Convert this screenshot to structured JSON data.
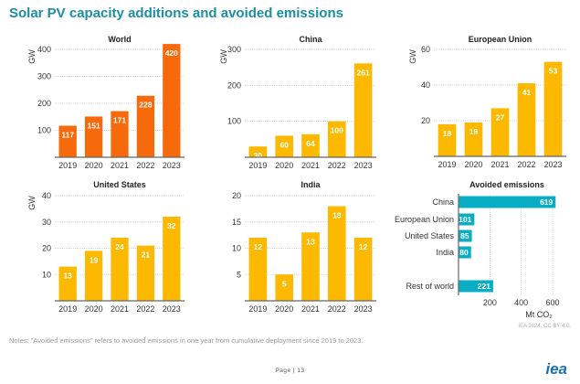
{
  "title": "Solar PV capacity additions and avoided emissions",
  "notes": "Notes: \"Avoided emissions\" refers to avoided emissions in one year from cumulative deployment since 2019 to 2023.",
  "credit": "IEA 2024. CC BY 4.0.",
  "page": "Page | 13",
  "logo": "iea",
  "chart_data": [
    {
      "type": "bar",
      "title": "World",
      "ylabel": "GW",
      "categories": [
        "2019",
        "2020",
        "2021",
        "2022",
        "2023"
      ],
      "values": [
        117,
        151,
        171,
        228,
        420
      ],
      "yticks": [
        100,
        200,
        300,
        400
      ],
      "ylim": [
        0,
        420
      ],
      "color": "#f76a0c",
      "grid": true
    },
    {
      "type": "bar",
      "title": "China",
      "ylabel": "GW",
      "categories": [
        "2019",
        "2020",
        "2021",
        "2022",
        "2023"
      ],
      "values": [
        30,
        60,
        64,
        100,
        261
      ],
      "yticks": [
        100,
        200,
        300
      ],
      "ylim": [
        0,
        300
      ],
      "color": "#fcb900",
      "grid": true
    },
    {
      "type": "bar",
      "title": "European Union",
      "ylabel": "GW",
      "categories": [
        "2019",
        "2020",
        "2021",
        "2022",
        "2023"
      ],
      "values": [
        18,
        19,
        27,
        41,
        53
      ],
      "yticks": [
        20,
        40,
        60
      ],
      "ylim": [
        0,
        60
      ],
      "color": "#fcb900",
      "grid": true
    },
    {
      "type": "bar",
      "title": "United States",
      "ylabel": "GW",
      "categories": [
        "2019",
        "2020",
        "2021",
        "2022",
        "2023"
      ],
      "values": [
        13,
        19,
        24,
        21,
        32
      ],
      "yticks": [
        10,
        20,
        30,
        40
      ],
      "ylim": [
        0,
        40
      ],
      "color": "#fcb900",
      "grid": true
    },
    {
      "type": "bar",
      "title": "India",
      "ylabel": "",
      "categories": [
        "2019",
        "2020",
        "2021",
        "2022",
        "2023"
      ],
      "values": [
        12,
        5,
        13,
        18,
        12
      ],
      "yticks": [
        5,
        10,
        15,
        20
      ],
      "ylim": [
        0,
        20
      ],
      "color": "#fcb900",
      "grid": true
    },
    {
      "type": "hbar",
      "title": "Avoided emissions",
      "xlabel": "Mt CO₂",
      "categories": [
        "China",
        "European Union",
        "United States",
        "India",
        "Rest of world"
      ],
      "values": [
        619,
        101,
        85,
        80,
        221
      ],
      "xticks": [
        200,
        400,
        600
      ],
      "xlim": [
        0,
        600
      ],
      "color": "#0aaec4",
      "grid": true
    }
  ]
}
